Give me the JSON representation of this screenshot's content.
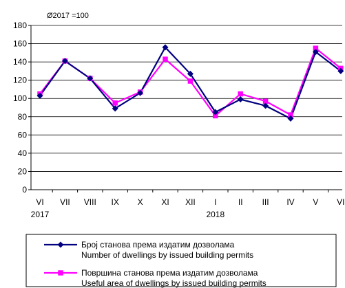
{
  "chart_data": {
    "type": "line",
    "note": "Ø2017 =100",
    "categories": [
      "VI",
      "VII",
      "VIII",
      "IX",
      "X",
      "XI",
      "XII",
      "I",
      "II",
      "III",
      "IV",
      "V",
      "VI"
    ],
    "year_labels": [
      {
        "index": 0,
        "label": "2017"
      },
      {
        "index": 7,
        "label": "2018"
      }
    ],
    "ylim": [
      0,
      180
    ],
    "yticks": [
      0,
      20,
      40,
      60,
      80,
      100,
      120,
      140,
      160,
      180
    ],
    "grid": true,
    "series": [
      {
        "name": "Број станова према издатим дозволама",
        "name_en": "Number of dwellings by issued building permits",
        "color": "#000080",
        "marker": "diamond",
        "values": [
          103,
          141,
          122,
          89,
          106,
          156,
          127,
          85,
          99,
          92,
          78,
          151,
          130
        ]
      },
      {
        "name": "Површина станова према издатим дозволама",
        "name_en": "Useful area of dwellings by issued building permits",
        "color": "#ff00ff",
        "marker": "square",
        "values": [
          105,
          141,
          122,
          95,
          107,
          143,
          119,
          81,
          105,
          97,
          82,
          155,
          133
        ]
      }
    ],
    "legend_position": "bottom"
  }
}
